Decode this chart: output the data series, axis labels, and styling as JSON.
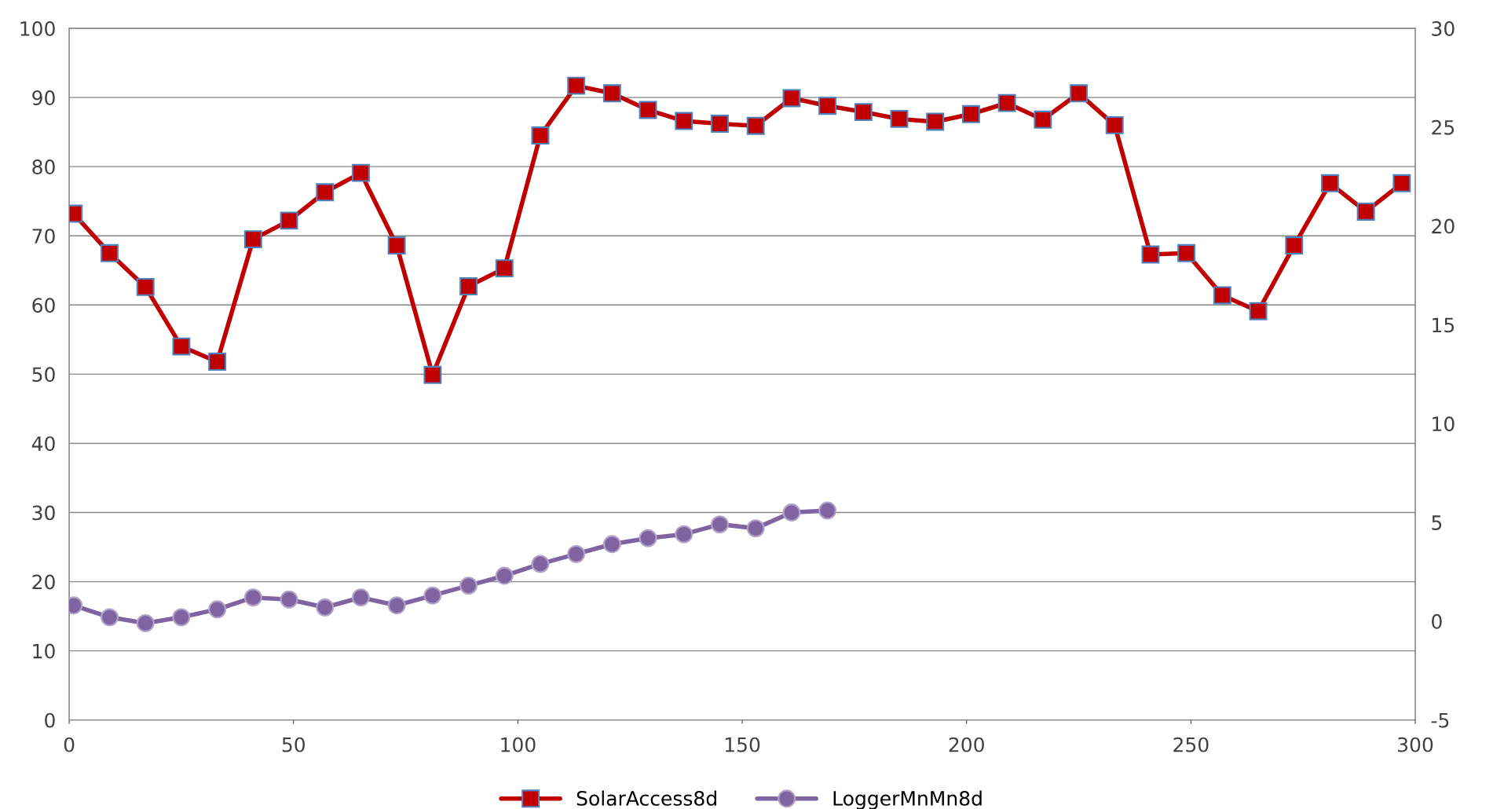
{
  "chart_data": {
    "type": "line",
    "x": [
      1,
      9,
      17,
      25,
      33,
      41,
      49,
      57,
      65,
      73,
      81,
      89,
      97,
      105,
      113,
      121,
      129,
      137,
      145,
      153,
      161,
      169,
      177,
      185,
      193,
      201,
      209,
      217,
      225,
      233,
      241,
      249,
      257,
      265,
      273,
      281,
      289,
      297
    ],
    "series": [
      {
        "name": "SolarAccess8d",
        "color": "#c00000",
        "marker": "square",
        "values": [
          73.2,
          67.5,
          62.6,
          54.0,
          51.8,
          69.5,
          72.2,
          76.3,
          79.1,
          68.6,
          49.9,
          62.7,
          65.3,
          84.5,
          91.7,
          90.6,
          88.2,
          86.6,
          86.2,
          85.9,
          89.9,
          88.8,
          87.9,
          86.9,
          86.5,
          87.6,
          89.2,
          86.8,
          90.6,
          86.0,
          67.3,
          67.5,
          61.4,
          59.1,
          68.6,
          77.6,
          73.5,
          77.6
        ]
      },
      {
        "name": "LoggerMnMn8d",
        "color": "#8064a2",
        "marker": "circle",
        "axis": "y2",
        "values": [
          0.8,
          0.2,
          -0.1,
          0.2,
          0.6,
          1.2,
          1.1,
          0.7,
          1.2,
          0.8,
          1.3,
          1.8,
          2.3,
          2.9,
          3.4,
          3.9,
          4.2,
          4.4,
          4.9,
          4.7,
          5.5,
          5.6,
          null,
          null,
          null,
          null,
          null,
          null,
          null,
          null,
          null,
          null,
          null,
          null,
          null,
          null,
          null,
          null
        ]
      }
    ],
    "xlim": [
      0,
      300
    ],
    "xticks": [
      0,
      50,
      100,
      150,
      200,
      250,
      300
    ],
    "ylim": [
      0,
      100
    ],
    "yticks": [
      0,
      10,
      20,
      30,
      40,
      50,
      60,
      70,
      80,
      90,
      100
    ],
    "y2lim": [
      -5,
      30
    ],
    "y2ticks": [
      -5,
      0,
      5,
      10,
      15,
      20,
      25,
      30
    ],
    "grid": "y",
    "legend": "bottom",
    "line_style": "solid"
  }
}
